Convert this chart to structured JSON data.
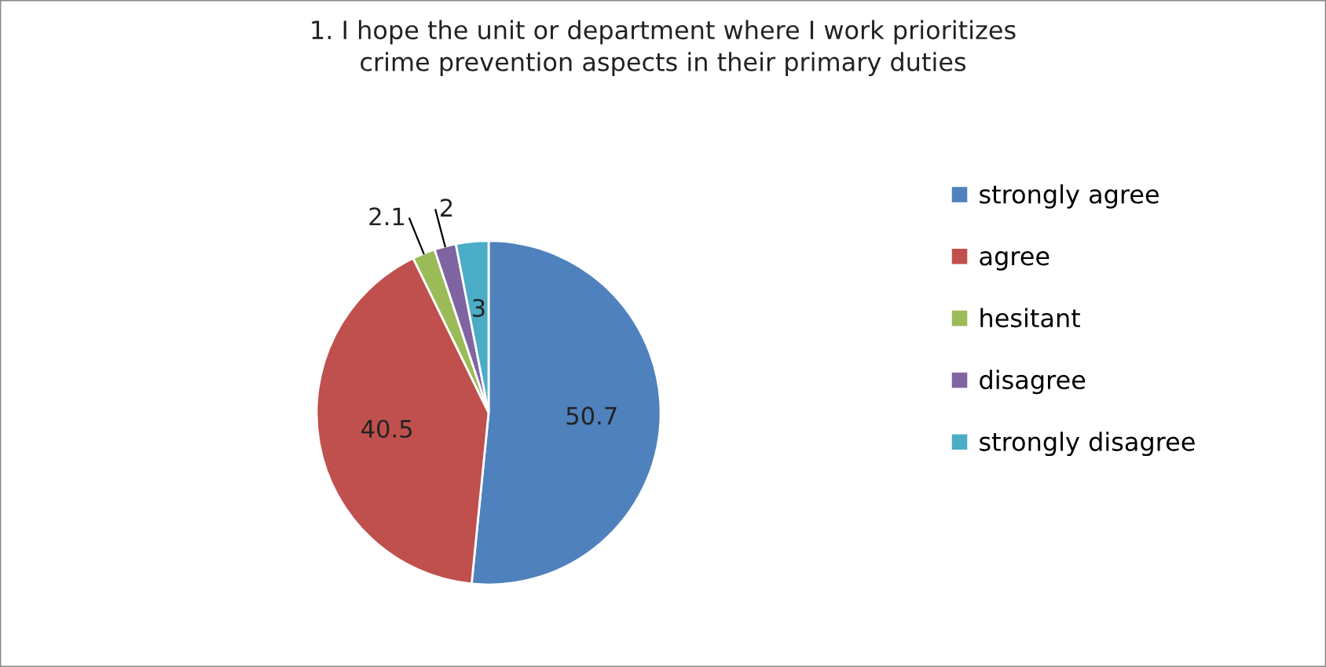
{
  "chart_data": {
    "type": "pie",
    "title": "1. I hope the unit or department where I work prioritizes\ncrime prevention aspects in their primary duties",
    "categories": [
      "strongly agree",
      "agree",
      "hesitant",
      "disagree",
      "strongly disagree"
    ],
    "values": [
      50.7,
      40.5,
      2.1,
      2,
      3
    ],
    "colors": [
      "#4f81bd",
      "#c0504d",
      "#9bbb59",
      "#8064a2",
      "#4bacc6"
    ],
    "data_labels": true,
    "legend": "right"
  }
}
